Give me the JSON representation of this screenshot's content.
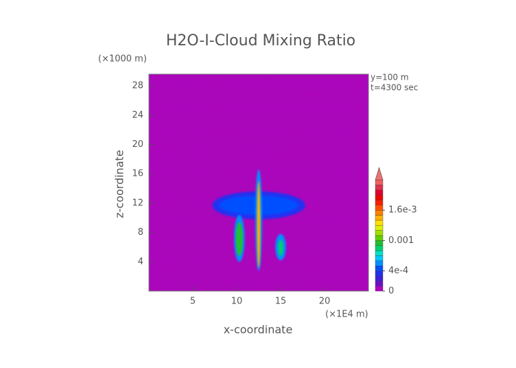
{
  "chart_data": {
    "type": "contour",
    "title": "H2O-I-Cloud Mixing Ratio",
    "x_label": "x-coordinate",
    "y_label": "z-coordinate",
    "x_unit": "(×1E4 m)",
    "y_unit": "(×1000 m)",
    "annotations": [
      "y=100 m",
      "t=4300 sec"
    ],
    "xlim": [
      0,
      25
    ],
    "ylim": [
      0,
      29.6
    ],
    "xticks": [
      5,
      10,
      15,
      20
    ],
    "yticks": [
      4,
      8,
      12,
      16,
      20,
      24,
      28
    ],
    "background_color": "#b000c0",
    "features": [
      {
        "x": [
          7.2,
          17.8
        ],
        "z": [
          9.8,
          13.6
        ],
        "value": 0.0003
      },
      {
        "x": [
          8.0,
          17.0
        ],
        "z": [
          10.4,
          13.0
        ],
        "value": 0.0004
      },
      {
        "x": [
          9.7,
          10.9
        ],
        "z": [
          4.0,
          10.4
        ],
        "value": 0.0005
      },
      {
        "x": [
          9.9,
          10.7
        ],
        "z": [
          4.8,
          9.4
        ],
        "value": 0.0009
      },
      {
        "x": [
          14.4,
          15.6
        ],
        "z": [
          4.2,
          7.8
        ],
        "value": 0.0005
      },
      {
        "x": [
          14.7,
          15.3
        ],
        "z": [
          4.8,
          7.0
        ],
        "value": 0.0008
      },
      {
        "x": [
          12.1,
          12.9
        ],
        "z": [
          2.8,
          16.6
        ],
        "value": 0.0005
      },
      {
        "x": [
          12.3,
          12.7
        ],
        "z": [
          3.2,
          15.0
        ],
        "value": 0.0014
      }
    ],
    "colorbar": {
      "boundaries": [
        0,
        0.0001,
        0.0002,
        0.0003,
        0.0004,
        0.0005,
        0.0006,
        0.0007,
        0.0008,
        0.0009,
        0.001,
        0.0011,
        0.0012,
        0.0013,
        0.0014,
        0.0015,
        0.0016,
        0.0017,
        0.0018,
        0.0019,
        0.002,
        0.0021,
        0.0022
      ],
      "colors": [
        "#b000c0",
        "#6a10c8",
        "#3a20d8",
        "#2030f0",
        "#0050ff",
        "#0090ff",
        "#00c8ff",
        "#00e0c8",
        "#00d070",
        "#20c030",
        "#60d000",
        "#a0e000",
        "#e0f000",
        "#ffe000",
        "#ffb000",
        "#ff8000",
        "#ff5000",
        "#ff2000",
        "#f00000",
        "#e00030",
        "#e03050",
        "#f06060"
      ],
      "extend_color": "#f07070",
      "ticks": [
        0,
        {
          "value": 0.0004,
          "label": "4e-4"
        },
        0.001,
        {
          "value": 0.0016,
          "label": "1.6e-3"
        }
      ]
    }
  }
}
